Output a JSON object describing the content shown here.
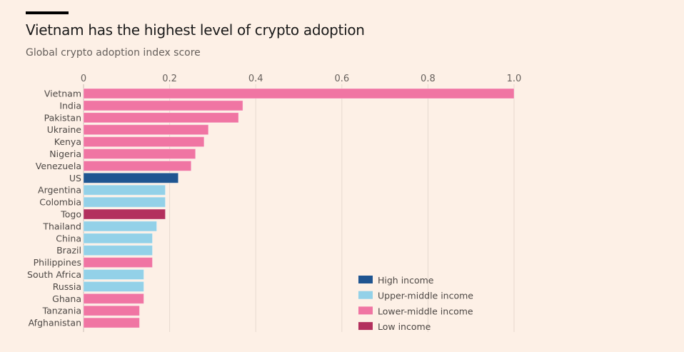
{
  "header": {
    "title": "Vietnam has the highest level of crypto adoption",
    "subtitle": "Global crypto adoption index score"
  },
  "chart_data": {
    "type": "bar",
    "orientation": "horizontal",
    "title": "Vietnam has the highest level of crypto adoption",
    "subtitle": "Global crypto adoption index score",
    "xlabel": "",
    "ylabel": "",
    "xlim": [
      0,
      1.0
    ],
    "xticks": [
      0,
      0.2,
      0.4,
      0.6,
      0.8,
      1.0
    ],
    "xtick_labels": [
      "0",
      "0.2",
      "0.4",
      "0.6",
      "0.8",
      "1.0"
    ],
    "grid": true,
    "legend_position": "bottom-right",
    "groups": [
      {
        "key": "high",
        "name": "High income",
        "color": "#1f5591"
      },
      {
        "key": "upper",
        "name": "Upper-middle income",
        "color": "#93d1e8"
      },
      {
        "key": "lower",
        "name": "Lower-middle income",
        "color": "#f075a3"
      },
      {
        "key": "low",
        "name": "Low income",
        "color": "#b3305e"
      }
    ],
    "categories": [
      "Vietnam",
      "India",
      "Pakistan",
      "Ukraine",
      "Kenya",
      "Nigeria",
      "Venezuela",
      "US",
      "Argentina",
      "Colombia",
      "Togo",
      "Thailand",
      "China",
      "Brazil",
      "Philippines",
      "South Africa",
      "Russia",
      "Ghana",
      "Tanzania",
      "Afghanistan"
    ],
    "values": [
      1.0,
      0.37,
      0.36,
      0.29,
      0.28,
      0.26,
      0.25,
      0.22,
      0.19,
      0.19,
      0.19,
      0.17,
      0.16,
      0.16,
      0.16,
      0.14,
      0.14,
      0.14,
      0.13,
      0.13
    ],
    "income_group": [
      "lower",
      "lower",
      "lower",
      "lower",
      "lower",
      "lower",
      "lower",
      "high",
      "upper",
      "upper",
      "low",
      "upper",
      "upper",
      "upper",
      "lower",
      "upper",
      "upper",
      "lower",
      "lower",
      "lower"
    ]
  }
}
